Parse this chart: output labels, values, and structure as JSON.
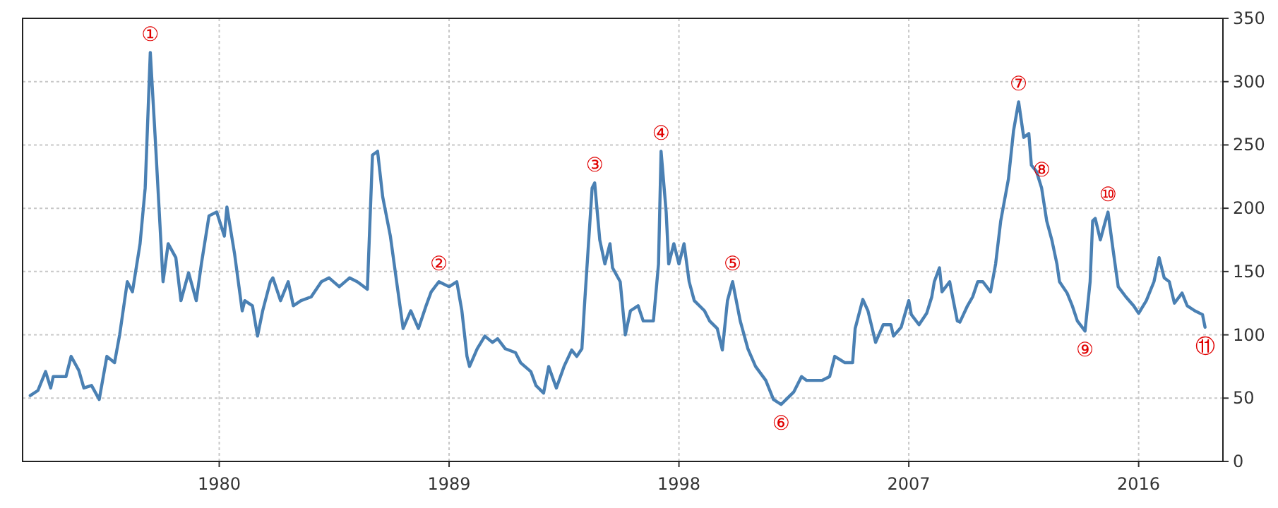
{
  "chart_data": {
    "type": "line",
    "x": [
      1972.6,
      1972.9,
      1973.2,
      1973.4,
      1973.5,
      1974.0,
      1974.2,
      1974.5,
      1974.7,
      1975.0,
      1975.3,
      1975.6,
      1975.9,
      1976.1,
      1976.4,
      1976.6,
      1976.9,
      1977.1,
      1977.3,
      1977.5,
      1977.8,
      1978.0,
      1978.3,
      1978.5,
      1978.8,
      1979.1,
      1979.3,
      1979.6,
      1979.9,
      1980.2,
      1980.3,
      1980.6,
      1980.9,
      1981.0,
      1981.3,
      1981.5,
      1981.7,
      1982.0,
      1982.1,
      1982.4,
      1982.7,
      1982.9,
      1983.2,
      1983.6,
      1984.0,
      1984.3,
      1984.7,
      1985.1,
      1985.4,
      1985.8,
      1986.0,
      1986.2,
      1986.4,
      1986.7,
      1987.0,
      1987.2,
      1987.5,
      1987.8,
      1988.1,
      1988.3,
      1988.6,
      1989.0,
      1989.3,
      1989.5,
      1989.7,
      1989.8,
      1990.1,
      1990.4,
      1990.7,
      1990.9,
      1991.2,
      1991.6,
      1991.8,
      1992.2,
      1992.4,
      1992.7,
      1992.9,
      1993.2,
      1993.5,
      1993.8,
      1994.0,
      1994.2,
      1994.3,
      1994.6,
      1994.7,
      1994.9,
      1995.1,
      1995.3,
      1995.4,
      1995.7,
      1995.9,
      1996.1,
      1996.4,
      1996.6,
      1997.0,
      1997.2,
      1997.3,
      1997.5,
      1997.6,
      1997.8,
      1998.0,
      1998.2,
      1998.4,
      1998.6,
      1999.0,
      1999.2,
      1999.5,
      1999.7,
      1999.9,
      2000.1,
      2000.4,
      2000.7,
      2001.0,
      2001.4,
      2001.7,
      2002.0,
      2002.2,
      2002.5,
      2002.8,
      2003.0,
      2003.3,
      2003.6,
      2003.9,
      2004.1,
      2004.5,
      2004.8,
      2004.9,
      2005.2,
      2005.4,
      2005.7,
      2006.0,
      2006.3,
      2006.4,
      2006.7,
      2007.0,
      2007.1,
      2007.4,
      2007.7,
      2007.9,
      2008.0,
      2008.2,
      2008.3,
      2008.6,
      2008.9,
      2009.0,
      2009.3,
      2009.5,
      2009.7,
      2009.9,
      2010.2,
      2010.4,
      2010.6,
      2010.9,
      2011.1,
      2011.3,
      2011.5,
      2011.7,
      2011.8,
      2012.0,
      2012.2,
      2012.4,
      2012.6,
      2012.8,
      2012.9,
      2013.2,
      2013.4,
      2013.6,
      2013.9,
      2014.1,
      2014.2,
      2014.3,
      2014.5,
      2014.7,
      2014.8,
      2015.0,
      2015.2,
      2015.5,
      2015.8,
      2016.0,
      2016.3,
      2016.6,
      2016.8,
      2017.0,
      2017.2,
      2017.4,
      2017.7,
      2017.9,
      2018.2,
      2018.5,
      2018.6
    ],
    "series": [
      {
        "color": "#4a80b3",
        "values": [
          52,
          56,
          71,
          58,
          67,
          67,
          83,
          72,
          58,
          60,
          49,
          83,
          78,
          100,
          142,
          134,
          172,
          216,
          323,
          253,
          142,
          172,
          161,
          127,
          149,
          127,
          156,
          194,
          197,
          178,
          201,
          164,
          119,
          127,
          123,
          99,
          119,
          142,
          145,
          127,
          142,
          123,
          127,
          130,
          142,
          145,
          138,
          145,
          142,
          136,
          242,
          245,
          209,
          178,
          134,
          105,
          119,
          105,
          123,
          134,
          142,
          138,
          142,
          119,
          83,
          75,
          89,
          99,
          94,
          97,
          89,
          86,
          78,
          71,
          60,
          54,
          75,
          58,
          75,
          88,
          83,
          89,
          123,
          216,
          220,
          175,
          156,
          172,
          153,
          142,
          100,
          119,
          123,
          111,
          111,
          156,
          245,
          197,
          156,
          172,
          156,
          172,
          142,
          127,
          119,
          111,
          105,
          88,
          127,
          142,
          111,
          89,
          75,
          64,
          49,
          45,
          49,
          55,
          67,
          64,
          64,
          64,
          67,
          83,
          78,
          78,
          105,
          128,
          119,
          94,
          108,
          108,
          99,
          106,
          127,
          116,
          108,
          117,
          130,
          142,
          153,
          134,
          142,
          111,
          110,
          123,
          130,
          142,
          142,
          134,
          156,
          190,
          223,
          261,
          284,
          256,
          259,
          234,
          229,
          216,
          190,
          175,
          156,
          142,
          133,
          123,
          111,
          103,
          142,
          190,
          192,
          175,
          190,
          197,
          167,
          138,
          130,
          123,
          117,
          127,
          142,
          161,
          145,
          142,
          125,
          133,
          123,
          119,
          116,
          106
        ]
      }
    ],
    "xlim": [
      1972.3,
      2019.3
    ],
    "xticks": [
      1980,
      1989,
      1998,
      2007,
      2016
    ],
    "ylim": [
      0,
      350
    ],
    "yticks": [
      0,
      50,
      100,
      150,
      200,
      250,
      300,
      350
    ],
    "grid": true,
    "annotations": [
      {
        "text": "①",
        "x": 1977.3,
        "y": 323
      },
      {
        "text": "②",
        "x": 1988.6,
        "y": 142
      },
      {
        "text": "③",
        "x": 1994.7,
        "y": 220
      },
      {
        "text": "④",
        "x": 1997.3,
        "y": 245
      },
      {
        "text": "⑤",
        "x": 2000.1,
        "y": 142
      },
      {
        "text": "⑥",
        "x": 2002.0,
        "y": 45
      },
      {
        "text": "⑦",
        "x": 2011.3,
        "y": 284
      },
      {
        "text": "⑧",
        "x": 2012.2,
        "y": 216
      },
      {
        "text": "⑨",
        "x": 2013.9,
        "y": 103
      },
      {
        "text": "⑩",
        "x": 2014.8,
        "y": 197
      },
      {
        "text": "⑪",
        "x": 2018.6,
        "y": 106
      }
    ]
  }
}
